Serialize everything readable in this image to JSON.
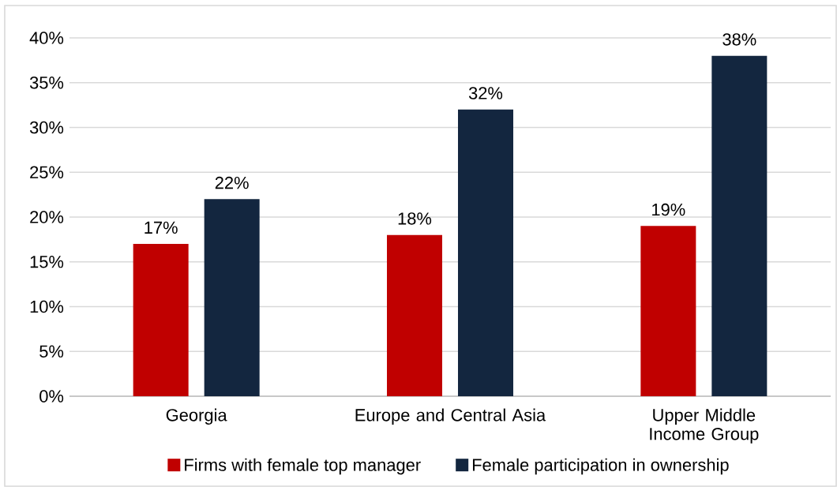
{
  "chart_data": {
    "type": "bar",
    "categories": [
      "Georgia",
      "Europe and Central Asia",
      "Upper Middle Income Group"
    ],
    "series": [
      {
        "name": "Firms with female top manager",
        "color": "#c00000",
        "values": [
          17,
          18,
          19
        ],
        "value_labels": [
          "17%",
          "18%",
          "19%"
        ]
      },
      {
        "name": "Female participation in ownership",
        "color": "#13263f",
        "values": [
          22,
          32,
          38
        ],
        "value_labels": [
          "22%",
          "32%",
          "38%"
        ]
      }
    ],
    "ylim": [
      0,
      40
    ],
    "yticks": [
      {
        "value": 0,
        "label": "0%"
      },
      {
        "value": 5,
        "label": "5%"
      },
      {
        "value": 10,
        "label": "10%"
      },
      {
        "value": 15,
        "label": "15%"
      },
      {
        "value": 20,
        "label": "20%"
      },
      {
        "value": 25,
        "label": "25%"
      },
      {
        "value": 30,
        "label": "30%"
      },
      {
        "value": 35,
        "label": "35%"
      },
      {
        "value": 40,
        "label": "40%"
      }
    ],
    "grid": "y",
    "legend": "bottom"
  }
}
